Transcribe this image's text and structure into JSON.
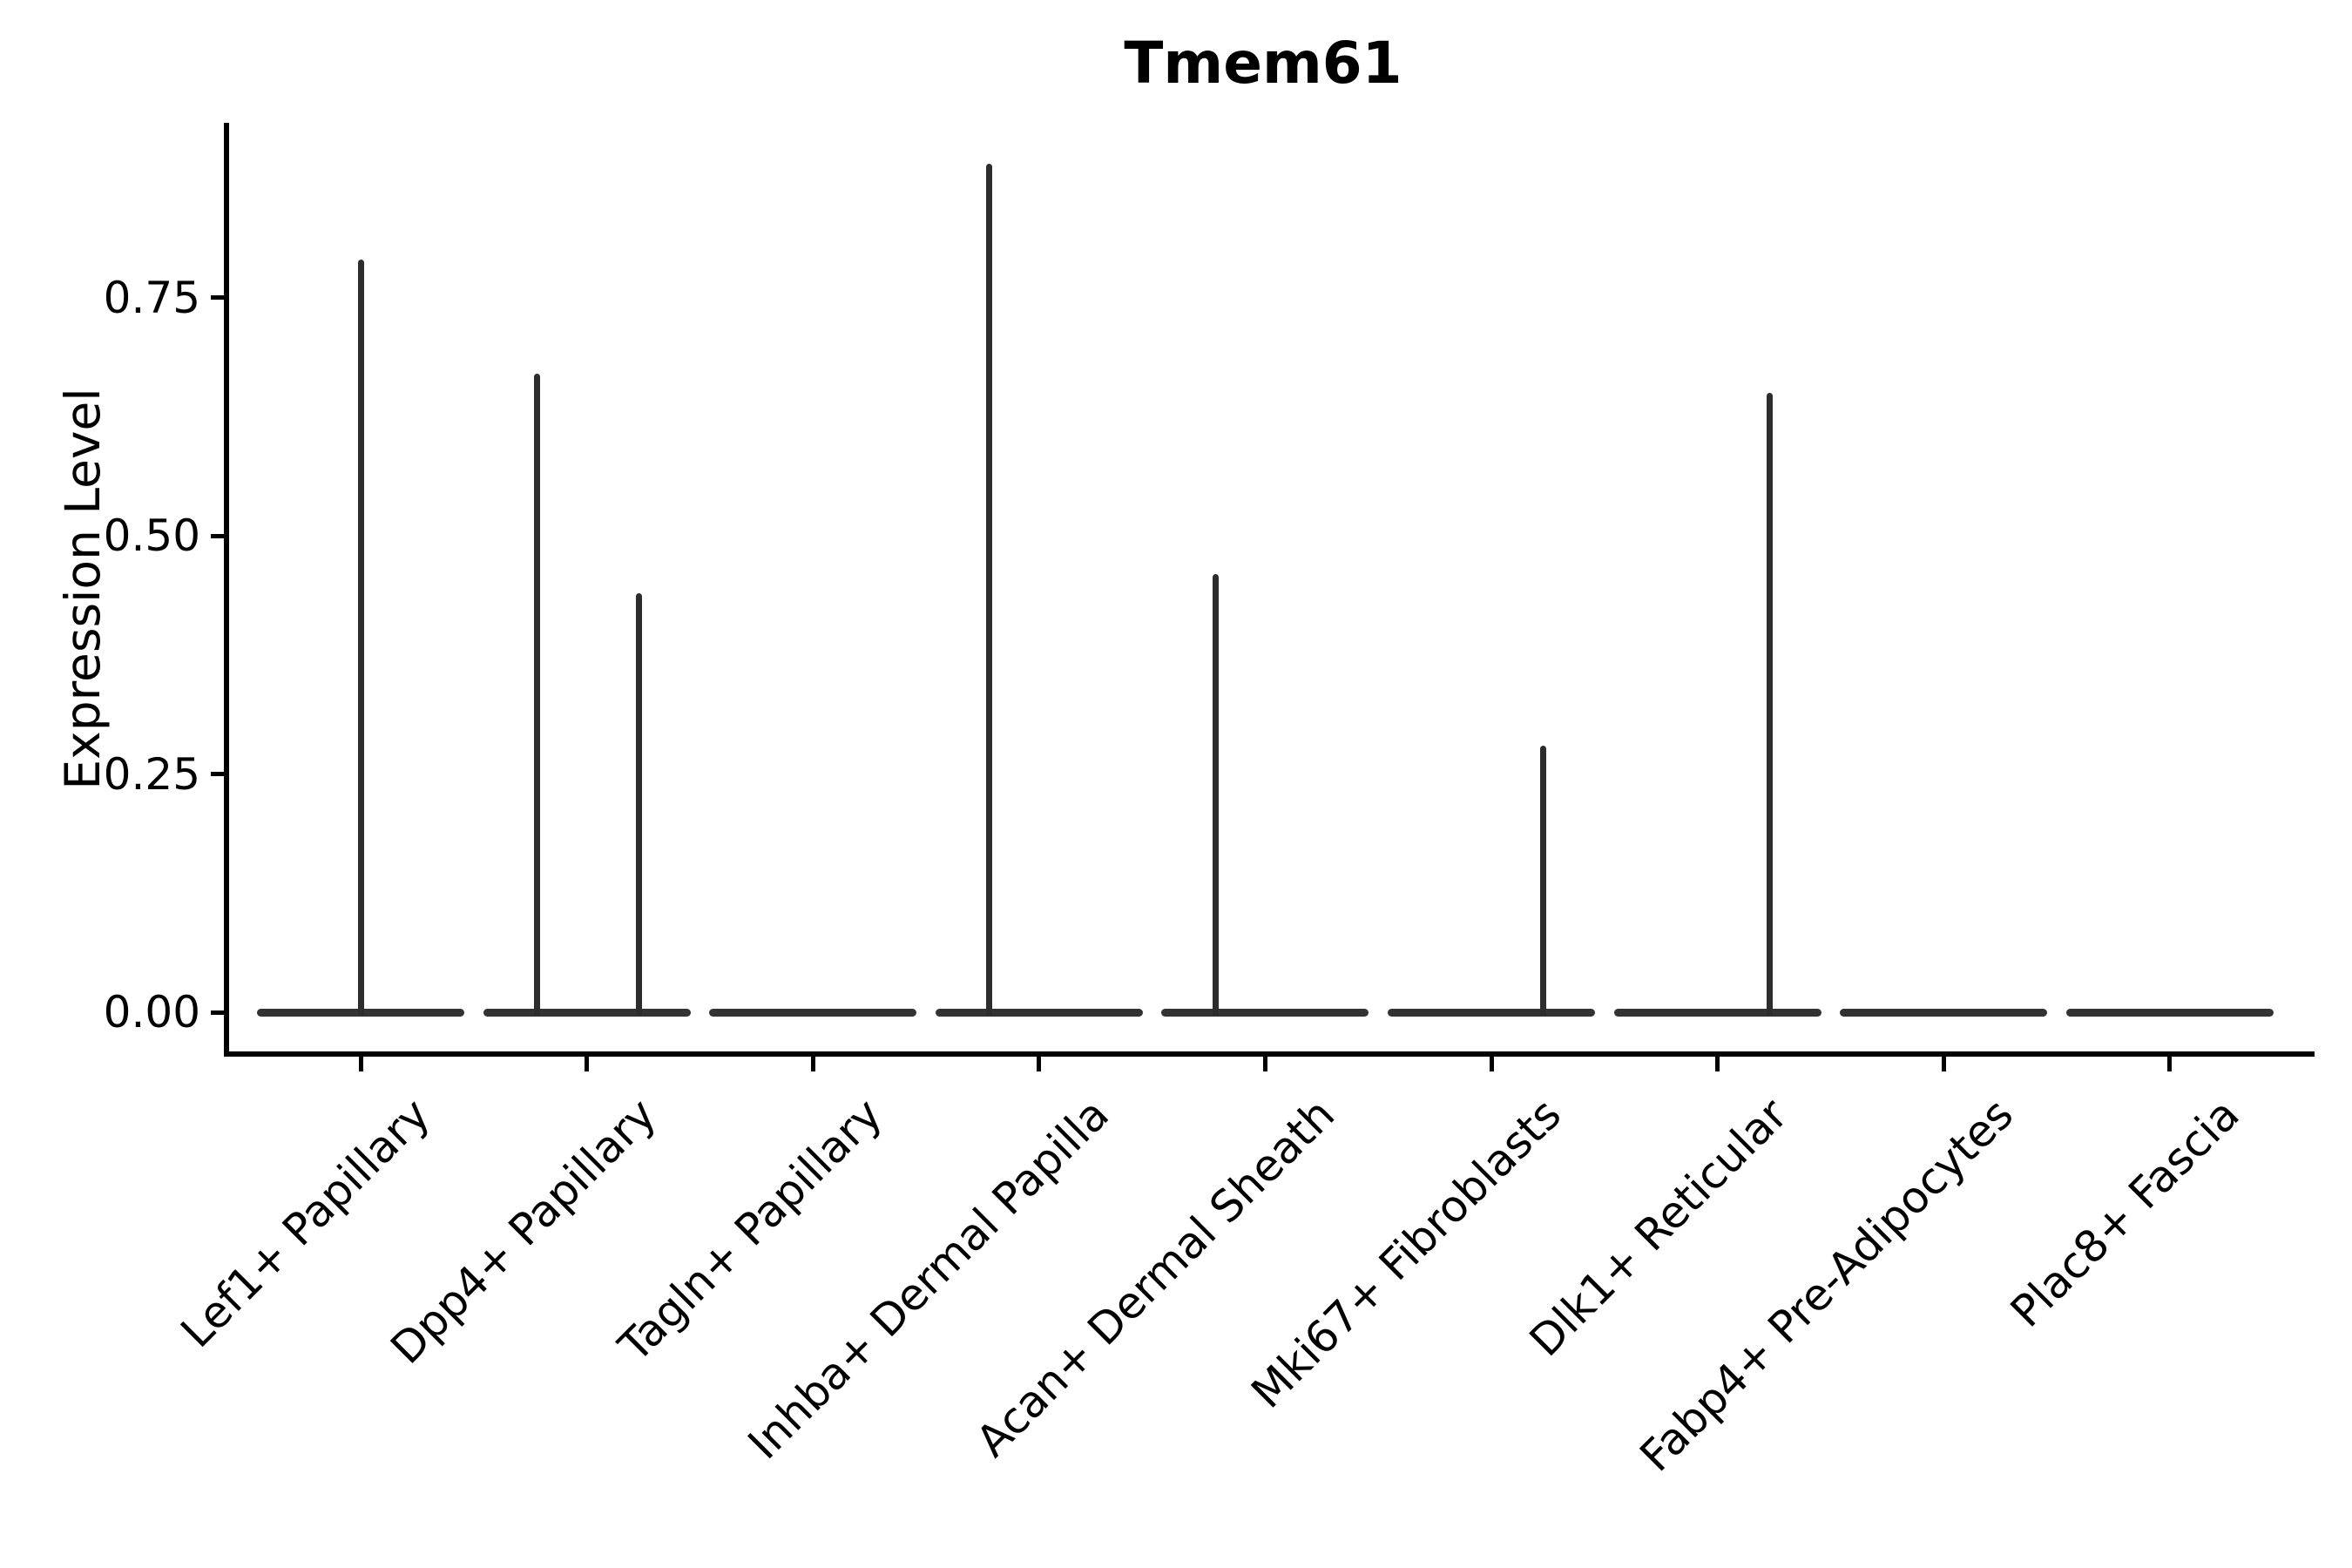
{
  "chart_data": {
    "type": "violin",
    "title": "Tmem61",
    "ylabel": "Expression Level",
    "xlabel": "",
    "grid": false,
    "legend": null,
    "ylim": [
      -0.04,
      0.93
    ],
    "yticks": [
      {
        "value": 0.0,
        "label": "0.00"
      },
      {
        "value": 0.25,
        "label": "0.25"
      },
      {
        "value": 0.5,
        "label": "0.50"
      },
      {
        "value": 0.75,
        "label": "0.75"
      }
    ],
    "categories": [
      "Lef1+ Papillary",
      "Dpp4+ Papillary",
      "Tagln+ Papillary",
      "Inhba+ Dermal Papilla",
      "Acan+ Dermal Sheath",
      "Mki67+ Fibroblasts",
      "Dlk1+ Reticular",
      "Fabp4+ Pre-Adipocytes",
      "Plac8+ Fascia"
    ],
    "violins": [
      {
        "category": "Lef1+ Papillary",
        "spikes": [
          {
            "dx": 0.0,
            "max": 0.79
          }
        ]
      },
      {
        "category": "Dpp4+ Papillary",
        "spikes": [
          {
            "dx": -0.22,
            "max": 0.67
          },
          {
            "dx": 0.23,
            "max": 0.44
          }
        ]
      },
      {
        "category": "Tagln+ Papillary",
        "spikes": []
      },
      {
        "category": "Inhba+ Dermal Papilla",
        "spikes": [
          {
            "dx": -0.22,
            "max": 0.89
          }
        ]
      },
      {
        "category": "Acan+ Dermal Sheath",
        "spikes": [
          {
            "dx": -0.22,
            "max": 0.46
          }
        ]
      },
      {
        "category": "Mki67+ Fibroblasts",
        "spikes": [
          {
            "dx": 0.23,
            "max": 0.28
          }
        ]
      },
      {
        "category": "Dlk1+ Reticular",
        "spikes": [
          {
            "dx": 0.23,
            "max": 0.65
          }
        ]
      },
      {
        "category": "Fabp4+ Pre-Adipocytes",
        "spikes": []
      },
      {
        "category": "Plac8+ Fascia",
        "spikes": []
      }
    ],
    "colors": {
      "spike": "#2d2d2d",
      "violin_base": "#333333",
      "axis": "#000000",
      "text": "#000000",
      "background": "#ffffff"
    }
  }
}
